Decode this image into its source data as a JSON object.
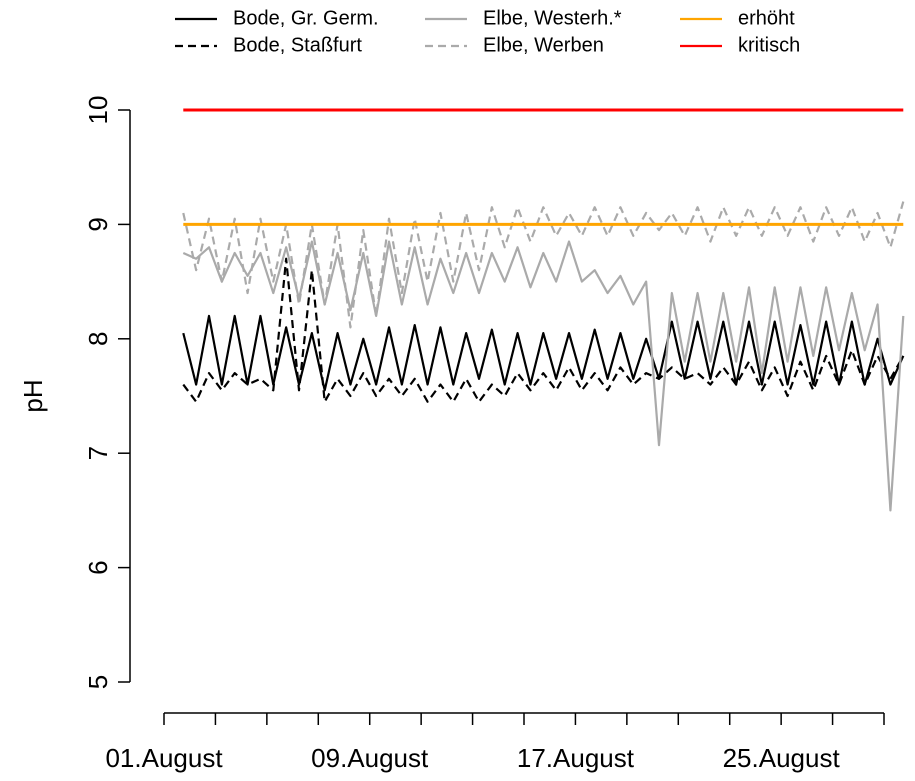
{
  "chart_data": {
    "type": "line",
    "y_label": "pH",
    "x": [
      1.75,
      2.25,
      2.75,
      3.25,
      3.75,
      4.25,
      4.75,
      5.25,
      5.75,
      6.25,
      6.75,
      7.25,
      7.75,
      8.25,
      8.75,
      9.25,
      9.75,
      10.25,
      10.75,
      11.25,
      11.75,
      12.25,
      12.75,
      13.25,
      13.75,
      14.25,
      14.75,
      15.25,
      15.75,
      16.25,
      16.75,
      17.25,
      17.75,
      18.25,
      18.75,
      19.25,
      19.75,
      20.25,
      20.75,
      21.25,
      21.75,
      22.25,
      22.75,
      23.25,
      23.75,
      24.25,
      24.75,
      25.25,
      25.75,
      26.25,
      26.75,
      27.25,
      27.75,
      28.25,
      28.75,
      29.25,
      29.75
    ],
    "series": [
      {
        "name": "Bode, Gr. Germ.",
        "color": "#000000",
        "dashed": false,
        "values": [
          8.05,
          7.6,
          8.2,
          7.6,
          8.2,
          7.6,
          8.2,
          7.6,
          8.1,
          7.6,
          8.05,
          7.55,
          8.05,
          7.6,
          8.0,
          7.6,
          8.1,
          7.6,
          8.12,
          7.6,
          8.1,
          7.6,
          8.05,
          7.65,
          8.08,
          7.6,
          8.05,
          7.6,
          8.05,
          7.65,
          8.05,
          7.65,
          8.08,
          7.65,
          8.05,
          7.65,
          8.0,
          7.65,
          8.15,
          7.65,
          8.15,
          7.65,
          8.15,
          7.6,
          8.15,
          7.6,
          8.15,
          7.6,
          8.12,
          7.6,
          8.15,
          7.6,
          8.15,
          7.6,
          8.0,
          7.6,
          7.85
        ]
      },
      {
        "name": "Bode, Staßfurt",
        "color": "#000000",
        "dashed": true,
        "values": [
          7.6,
          7.45,
          7.7,
          7.55,
          7.7,
          7.6,
          7.65,
          7.55,
          8.7,
          7.55,
          8.6,
          7.45,
          7.65,
          7.5,
          7.7,
          7.5,
          7.65,
          7.5,
          7.65,
          7.45,
          7.6,
          7.45,
          7.65,
          7.45,
          7.6,
          7.5,
          7.7,
          7.55,
          7.7,
          7.55,
          7.75,
          7.55,
          7.7,
          7.55,
          7.75,
          7.6,
          7.7,
          7.65,
          7.75,
          7.65,
          7.7,
          7.6,
          7.75,
          7.6,
          7.8,
          7.55,
          7.75,
          7.5,
          7.8,
          7.55,
          7.85,
          7.6,
          7.9,
          7.6,
          7.85,
          7.65,
          7.85
        ]
      },
      {
        "name": "Elbe, Westerh.*",
        "color": "#aaaaaa",
        "dashed": false,
        "values": [
          8.75,
          8.7,
          8.8,
          8.5,
          8.75,
          8.55,
          8.75,
          8.4,
          8.8,
          8.35,
          8.85,
          8.3,
          8.75,
          8.25,
          8.75,
          8.2,
          8.85,
          8.3,
          8.8,
          8.3,
          8.7,
          8.4,
          8.75,
          8.4,
          8.75,
          8.5,
          8.8,
          8.45,
          8.75,
          8.5,
          8.85,
          8.5,
          8.6,
          8.4,
          8.55,
          8.3,
          8.5,
          7.07,
          8.4,
          7.8,
          8.4,
          7.8,
          8.4,
          7.8,
          8.45,
          7.7,
          8.45,
          7.8,
          8.45,
          7.85,
          8.45,
          7.9,
          8.4,
          7.9,
          8.3,
          6.5,
          8.2
        ]
      },
      {
        "name": "Elbe, Werben",
        "color": "#aaaaaa",
        "dashed": true,
        "values": [
          9.1,
          8.6,
          9.05,
          8.5,
          9.05,
          8.4,
          9.05,
          8.5,
          9.0,
          8.3,
          9.0,
          8.3,
          9.0,
          8.1,
          8.95,
          8.2,
          9.05,
          8.4,
          9.05,
          8.5,
          9.1,
          8.5,
          9.1,
          8.6,
          9.15,
          8.8,
          9.15,
          8.85,
          9.15,
          8.9,
          9.1,
          8.9,
          9.15,
          8.9,
          9.15,
          8.9,
          9.1,
          8.95,
          9.1,
          8.9,
          9.15,
          8.85,
          9.15,
          8.9,
          9.15,
          8.9,
          9.15,
          8.9,
          9.15,
          8.85,
          9.15,
          8.9,
          9.15,
          8.85,
          9.1,
          8.8,
          9.2
        ]
      },
      {
        "name": "erhöht",
        "color": "#ffa500",
        "dashed": false,
        "x": [
          1.75,
          29.75
        ],
        "values": [
          9,
          9
        ]
      },
      {
        "name": "kritisch",
        "color": "#ff0000",
        "dashed": false,
        "x": [
          1.75,
          29.75
        ],
        "values": [
          10,
          10
        ]
      }
    ],
    "xlim": [
      1,
      29
    ],
    "xticks": [
      {
        "value": 1,
        "label": "01.August"
      },
      {
        "value": 3,
        "label": null
      },
      {
        "value": 5,
        "label": null
      },
      {
        "value": 7,
        "label": null
      },
      {
        "value": 9,
        "label": "09.August"
      },
      {
        "value": 11,
        "label": null
      },
      {
        "value": 13,
        "label": null
      },
      {
        "value": 15,
        "label": null
      },
      {
        "value": 17,
        "label": "17.August"
      },
      {
        "value": 19,
        "label": null
      },
      {
        "value": 21,
        "label": null
      },
      {
        "value": 23,
        "label": null
      },
      {
        "value": 25,
        "label": "25.August"
      },
      {
        "value": 27,
        "label": null
      },
      {
        "value": 29,
        "label": null
      }
    ],
    "ylim": [
      5,
      10
    ],
    "yticks": [
      5,
      6,
      7,
      8,
      9,
      10
    ],
    "grid": false,
    "legend": "top"
  }
}
